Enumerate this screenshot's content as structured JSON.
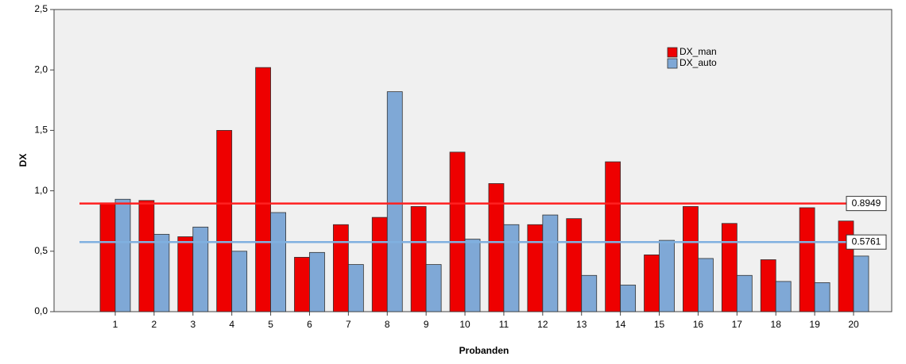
{
  "chart_data": {
    "type": "bar",
    "x_label": "Probanden",
    "y_label": "DX",
    "categories": [
      "1",
      "2",
      "3",
      "4",
      "5",
      "6",
      "7",
      "8",
      "9",
      "10",
      "11",
      "12",
      "13",
      "14",
      "15",
      "16",
      "17",
      "18",
      "19",
      "20"
    ],
    "series": [
      {
        "name": "DX_man",
        "color": "#ee0000",
        "values": [
          0.9,
          0.92,
          0.62,
          1.5,
          2.02,
          0.45,
          0.72,
          0.78,
          0.87,
          1.32,
          1.06,
          0.72,
          0.77,
          1.24,
          0.47,
          0.87,
          0.73,
          0.43,
          0.86,
          0.75
        ]
      },
      {
        "name": "DX_auto",
        "color": "#7fa8d6",
        "values": [
          0.93,
          0.64,
          0.7,
          0.5,
          0.82,
          0.49,
          0.39,
          1.82,
          0.39,
          0.6,
          0.72,
          0.8,
          0.3,
          0.22,
          0.59,
          0.44,
          0.3,
          0.25,
          0.24,
          0.46
        ]
      }
    ],
    "reference_lines": [
      {
        "value": 0.8949,
        "color": "#ff2020"
      },
      {
        "value": 0.5761,
        "color": "#80b0e0"
      }
    ],
    "ylim": [
      0,
      2.5
    ],
    "yticks": [
      {
        "value": 0,
        "label": "0,0"
      },
      {
        "value": 0.5,
        "label": "0,5"
      },
      {
        "value": 1,
        "label": "1,0"
      },
      {
        "value": 1.5,
        "label": "1,5"
      },
      {
        "value": 2,
        "label": "2,0"
      },
      {
        "value": 2.5,
        "label": "2,5"
      }
    ],
    "legend": "top-right"
  }
}
